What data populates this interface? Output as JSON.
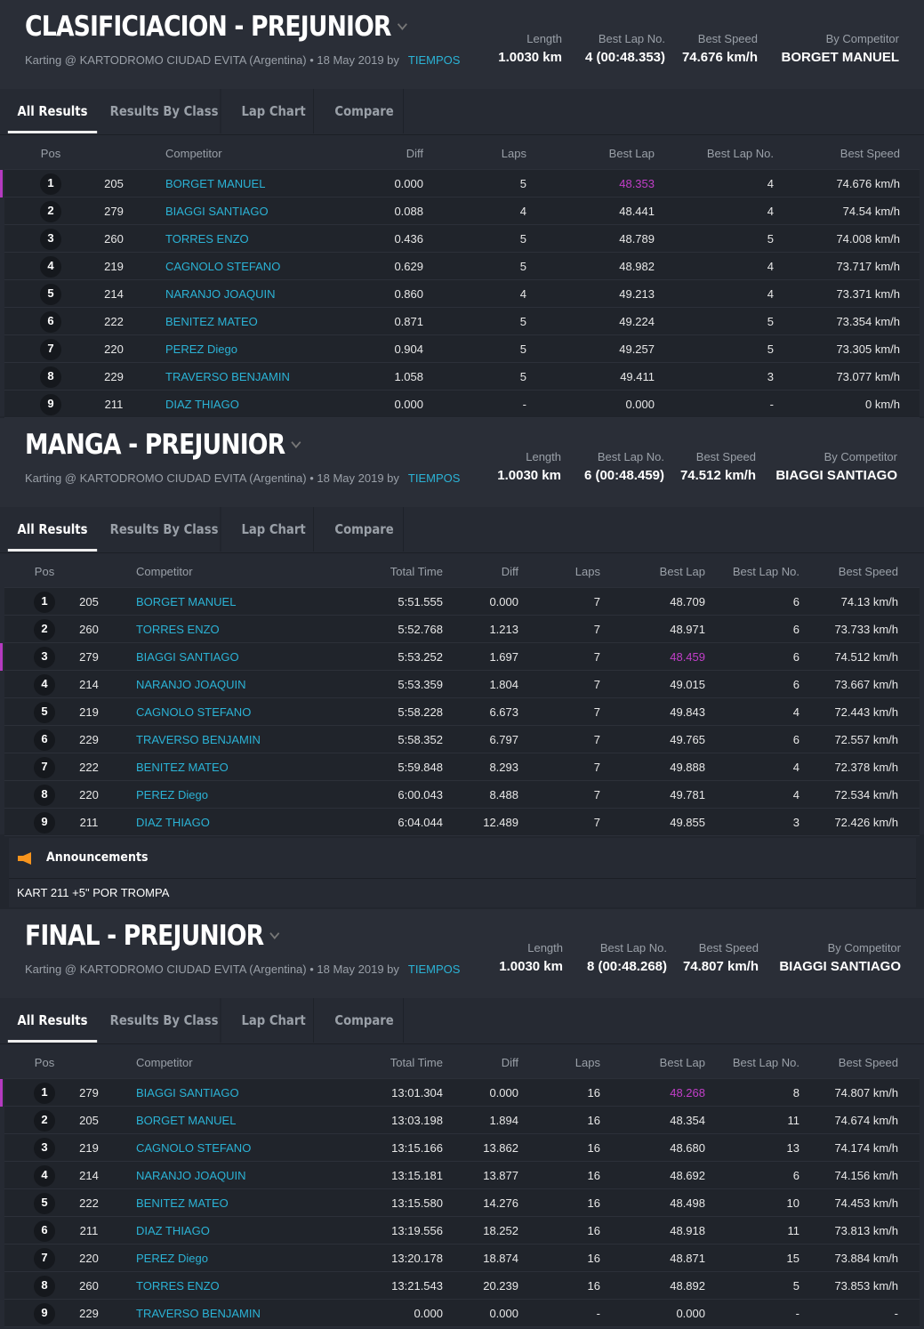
{
  "tabs": [
    "All Results",
    "Results By Class",
    "Lap Chart",
    "Compare"
  ],
  "stat_labels": [
    "Length",
    "Best Lap No.",
    "Best Speed",
    "By Competitor"
  ],
  "colors": {
    "link": "#2bb3d6",
    "best": "#c23fc9",
    "background": "#262a33"
  },
  "sections": [
    {
      "title": "CLASIFICIACION - PREJUNIOR",
      "subtitle": "Karting @ KARTODROMO CIUDAD EVITA (Argentina) • 18 May 2019 by",
      "by": "TIEMPOS",
      "stats": [
        "1.0030 km",
        "4 (00:48.353)",
        "74.676 km/h",
        "BORGET MANUEL"
      ],
      "columns": [
        "Pos",
        "",
        "Competitor",
        "Diff",
        "Laps",
        "Best Lap",
        "Best Lap No.",
        "Best Speed"
      ],
      "best_row": 0,
      "rows": [
        [
          "1",
          "205",
          "BORGET MANUEL",
          "0.000",
          "5",
          "48.353",
          "4",
          "74.676 km/h"
        ],
        [
          "2",
          "279",
          "BIAGGI SANTIAGO",
          "0.088",
          "4",
          "48.441",
          "4",
          "74.54 km/h"
        ],
        [
          "3",
          "260",
          "TORRES ENZO",
          "0.436",
          "5",
          "48.789",
          "5",
          "74.008 km/h"
        ],
        [
          "4",
          "219",
          "CAGNOLO STEFANO",
          "0.629",
          "5",
          "48.982",
          "4",
          "73.717 km/h"
        ],
        [
          "5",
          "214",
          "NARANJO JOAQUIN",
          "0.860",
          "4",
          "49.213",
          "4",
          "73.371 km/h"
        ],
        [
          "6",
          "222",
          "BENITEZ MATEO",
          "0.871",
          "5",
          "49.224",
          "5",
          "73.354 km/h"
        ],
        [
          "7",
          "220",
          "PEREZ Diego",
          "0.904",
          "5",
          "49.257",
          "5",
          "73.305 km/h"
        ],
        [
          "8",
          "229",
          "TRAVERSO BENJAMIN",
          "1.058",
          "5",
          "49.411",
          "3",
          "73.077 km/h"
        ],
        [
          "9",
          "211",
          "DIAZ THIAGO",
          "0.000",
          "-",
          "0.000",
          "-",
          "0 km/h"
        ]
      ]
    },
    {
      "title": "MANGA - PREJUNIOR",
      "subtitle": "Karting @ KARTODROMO CIUDAD EVITA (Argentina) • 18 May 2019 by",
      "by": "TIEMPOS",
      "stats": [
        "1.0030 km",
        "6 (00:48.459)",
        "74.512 km/h",
        "BIAGGI SANTIAGO"
      ],
      "columns": [
        "Pos",
        "",
        "Competitor",
        "Total Time",
        "Diff",
        "Laps",
        "Best Lap",
        "Best Lap No.",
        "Best Speed"
      ],
      "best_row": 2,
      "rows": [
        [
          "1",
          "205",
          "BORGET MANUEL",
          "5:51.555",
          "0.000",
          "7",
          "48.709",
          "6",
          "74.13 km/h"
        ],
        [
          "2",
          "260",
          "TORRES ENZO",
          "5:52.768",
          "1.213",
          "7",
          "48.971",
          "6",
          "73.733 km/h"
        ],
        [
          "3",
          "279",
          "BIAGGI SANTIAGO",
          "5:53.252",
          "1.697",
          "7",
          "48.459",
          "6",
          "74.512 km/h"
        ],
        [
          "4",
          "214",
          "NARANJO JOAQUIN",
          "5:53.359",
          "1.804",
          "7",
          "49.015",
          "6",
          "73.667 km/h"
        ],
        [
          "5",
          "219",
          "CAGNOLO STEFANO",
          "5:58.228",
          "6.673",
          "7",
          "49.843",
          "4",
          "72.443 km/h"
        ],
        [
          "6",
          "229",
          "TRAVERSO BENJAMIN",
          "5:58.352",
          "6.797",
          "7",
          "49.765",
          "6",
          "72.557 km/h"
        ],
        [
          "7",
          "222",
          "BENITEZ MATEO",
          "5:59.848",
          "8.293",
          "7",
          "49.888",
          "4",
          "72.378 km/h"
        ],
        [
          "8",
          "220",
          "PEREZ Diego",
          "6:00.043",
          "8.488",
          "7",
          "49.781",
          "4",
          "72.534 km/h"
        ],
        [
          "9",
          "211",
          "DIAZ THIAGO",
          "6:04.044",
          "12.489",
          "7",
          "49.855",
          "3",
          "72.426 km/h"
        ]
      ]
    },
    {
      "title": "FINAL - PREJUNIOR",
      "subtitle": "Karting @ KARTODROMO CIUDAD EVITA (Argentina) • 18 May 2019 by",
      "by": "TIEMPOS",
      "stats": [
        "1.0030 km",
        "8 (00:48.268)",
        "74.807 km/h",
        "BIAGGI SANTIAGO"
      ],
      "columns": [
        "Pos",
        "",
        "Competitor",
        "Total Time",
        "Diff",
        "Laps",
        "Best Lap",
        "Best Lap No.",
        "Best Speed"
      ],
      "best_row": 0,
      "rows": [
        [
          "1",
          "279",
          "BIAGGI SANTIAGO",
          "13:01.304",
          "0.000",
          "16",
          "48.268",
          "8",
          "74.807 km/h"
        ],
        [
          "2",
          "205",
          "BORGET MANUEL",
          "13:03.198",
          "1.894",
          "16",
          "48.354",
          "11",
          "74.674 km/h"
        ],
        [
          "3",
          "219",
          "CAGNOLO STEFANO",
          "13:15.166",
          "13.862",
          "16",
          "48.680",
          "13",
          "74.174 km/h"
        ],
        [
          "4",
          "214",
          "NARANJO JOAQUIN",
          "13:15.181",
          "13.877",
          "16",
          "48.692",
          "6",
          "74.156 km/h"
        ],
        [
          "5",
          "222",
          "BENITEZ MATEO",
          "13:15.580",
          "14.276",
          "16",
          "48.498",
          "10",
          "74.453 km/h"
        ],
        [
          "6",
          "211",
          "DIAZ THIAGO",
          "13:19.556",
          "18.252",
          "16",
          "48.918",
          "11",
          "73.813 km/h"
        ],
        [
          "7",
          "220",
          "PEREZ Diego",
          "13:20.178",
          "18.874",
          "16",
          "48.871",
          "15",
          "73.884 km/h"
        ],
        [
          "8",
          "260",
          "TORRES ENZO",
          "13:21.543",
          "20.239",
          "16",
          "48.892",
          "5",
          "73.853 km/h"
        ],
        [
          "9",
          "229",
          "TRAVERSO BENJAMIN",
          "0.000",
          "0.000",
          "-",
          "0.000",
          "-",
          "-"
        ]
      ]
    }
  ],
  "announcements": {
    "title": "Announcements",
    "icon": "megaphone-icon",
    "text": "KART 211 +5\" POR TROMPA"
  }
}
